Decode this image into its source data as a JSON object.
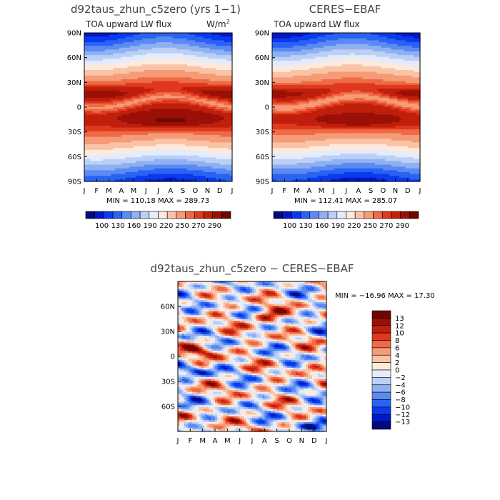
{
  "chart_data": [
    {
      "type": "heatmap",
      "title": "d92taus_zhun_c5zero (yrs 1−1)",
      "subtitle_left": "TOA upward LW flux",
      "units_base": "W/m",
      "units_exp": "2",
      "x_ticks": [
        "J",
        "F",
        "M",
        "A",
        "M",
        "J",
        "J",
        "A",
        "S",
        "O",
        "N",
        "D",
        "J"
      ],
      "y_ticks": [
        "90N",
        "60N",
        "30N",
        "0",
        "30S",
        "60S",
        "90S"
      ],
      "ylim": [
        -90,
        90
      ],
      "stats": "MIN = 110.18  MAX = 289.73",
      "colorbar_labels": [
        "100",
        "130",
        "160",
        "190",
        "220",
        "250",
        "270",
        "290"
      ]
    },
    {
      "type": "heatmap",
      "title": "CERES−EBAF",
      "subtitle_left": "TOA upward LW flux",
      "x_ticks": [
        "J",
        "F",
        "M",
        "A",
        "M",
        "J",
        "J",
        "A",
        "S",
        "O",
        "N",
        "D",
        "J"
      ],
      "y_ticks": [
        "90N",
        "60N",
        "30N",
        "0",
        "30S",
        "60S",
        "90S"
      ],
      "ylim": [
        -90,
        90
      ],
      "stats": "MIN = 112.41  MAX = 285.07",
      "colorbar_labels": [
        "100",
        "130",
        "160",
        "190",
        "220",
        "250",
        "270",
        "290"
      ]
    },
    {
      "type": "heatmap",
      "title": "d92taus_zhun_c5zero − CERES−EBAF",
      "x_ticks": [
        "J",
        "F",
        "M",
        "A",
        "M",
        "J",
        "J",
        "A",
        "S",
        "O",
        "N",
        "D",
        "J"
      ],
      "y_ticks": [
        "60N",
        "30N",
        "0",
        "30S",
        "60S"
      ],
      "ylim": [
        -90,
        90
      ],
      "stats": "MIN = −16.96  MAX =  17.30",
      "levels": [
        "13",
        "12",
        "10",
        "8",
        "6",
        "4",
        "2",
        "0",
        "−2",
        "−4",
        "−6",
        "−8",
        "−10",
        "−12",
        "−13"
      ]
    }
  ],
  "colors": {
    "abs_scale": [
      "#000a7a",
      "#0019c8",
      "#0a3aef",
      "#2a62f4",
      "#5a8af2",
      "#8fb0f2",
      "#bcd0f6",
      "#e3ecfc",
      "#fdeadc",
      "#fac3a6",
      "#f59b77",
      "#ee6a45",
      "#e0391e",
      "#c01f0c",
      "#9a1006",
      "#6e0602"
    ],
    "diff_scale": [
      "#6e0602",
      "#9a1006",
      "#c01f0c",
      "#e0391e",
      "#ef6a45",
      "#f59b77",
      "#fac3a6",
      "#fdeadc",
      "#e3ecfc",
      "#bcd0f6",
      "#8fb0f2",
      "#5a8af2",
      "#2a62f4",
      "#0a3aef",
      "#0019c8",
      "#000a7a"
    ]
  }
}
